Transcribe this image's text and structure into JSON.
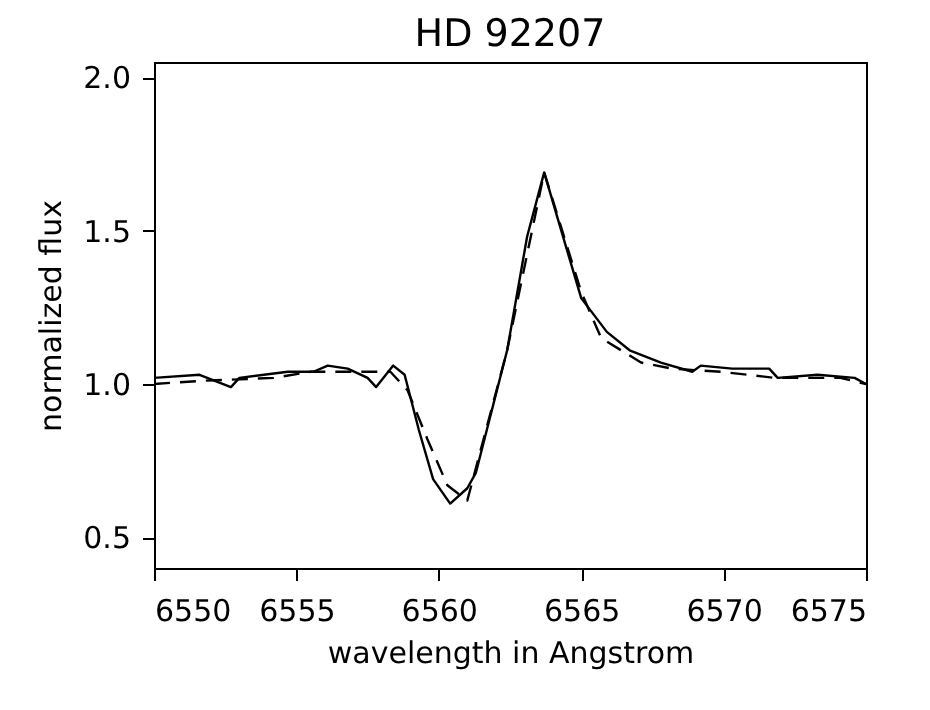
{
  "chart_data": {
    "type": "line",
    "title": "HD 92207",
    "xlabel": "wavelength in Angstrom",
    "ylabel": "normalized flux",
    "xlim": [
      6550,
      6575
    ],
    "xticks": [
      6550,
      6555,
      6560,
      6565,
      6570,
      6575
    ],
    "ylim": [
      0.4,
      2.05
    ],
    "yticks": [
      {
        "value": 0.5,
        "label": "0.5"
      },
      {
        "value": 1.0,
        "label": "1.0"
      },
      {
        "value": 1.5,
        "label": "1.5"
      },
      {
        "value": 2.0,
        "label": "2.0"
      }
    ],
    "marker": "none",
    "series": [
      {
        "color": "#000000",
        "line_style": "solid",
        "x": [
          6550,
          6551.6,
          6552.7,
          6553.0,
          6554.7,
          6555.6,
          6556.1,
          6556.8,
          6557.5,
          6557.8,
          6558.4,
          6558.8,
          6559.3,
          6559.8,
          6560.4,
          6561.0,
          6561.3,
          6562.4,
          6563.1,
          6563.7,
          6564.3,
          6565.0,
          6565.9,
          6566.7,
          6567.8,
          6568.9,
          6569.2,
          6570.3,
          6571.6,
          6571.9,
          6573.3,
          6574.6,
          6575
        ],
        "values": [
          1.02,
          1.03,
          0.99,
          1.02,
          1.04,
          1.04,
          1.06,
          1.05,
          1.02,
          0.99,
          1.06,
          1.03,
          0.85,
          0.69,
          0.61,
          0.66,
          0.71,
          1.11,
          1.48,
          1.69,
          1.5,
          1.28,
          1.17,
          1.11,
          1.07,
          1.04,
          1.06,
          1.05,
          1.05,
          1.02,
          1.03,
          1.02,
          1.0
        ]
      },
      {
        "color": "#000000",
        "line_style": "dashed",
        "x": [
          6550,
          6551.6,
          6554.2,
          6555.5,
          6557.2,
          6558.3,
          6558.9,
          6559.6,
          6560.3,
          6561.0,
          6561.4,
          6562.4,
          6563.7,
          6564.3,
          6565.0,
          6565.7,
          6566.4,
          6567.1,
          6568.2,
          6569.9,
          6571.8,
          6574.1,
          6575
        ],
        "values": [
          1.0,
          1.01,
          1.02,
          1.04,
          1.04,
          1.04,
          0.98,
          0.82,
          0.67,
          0.62,
          0.76,
          1.11,
          1.69,
          1.51,
          1.3,
          1.15,
          1.11,
          1.07,
          1.05,
          1.04,
          1.02,
          1.02,
          1.0
        ]
      }
    ]
  }
}
